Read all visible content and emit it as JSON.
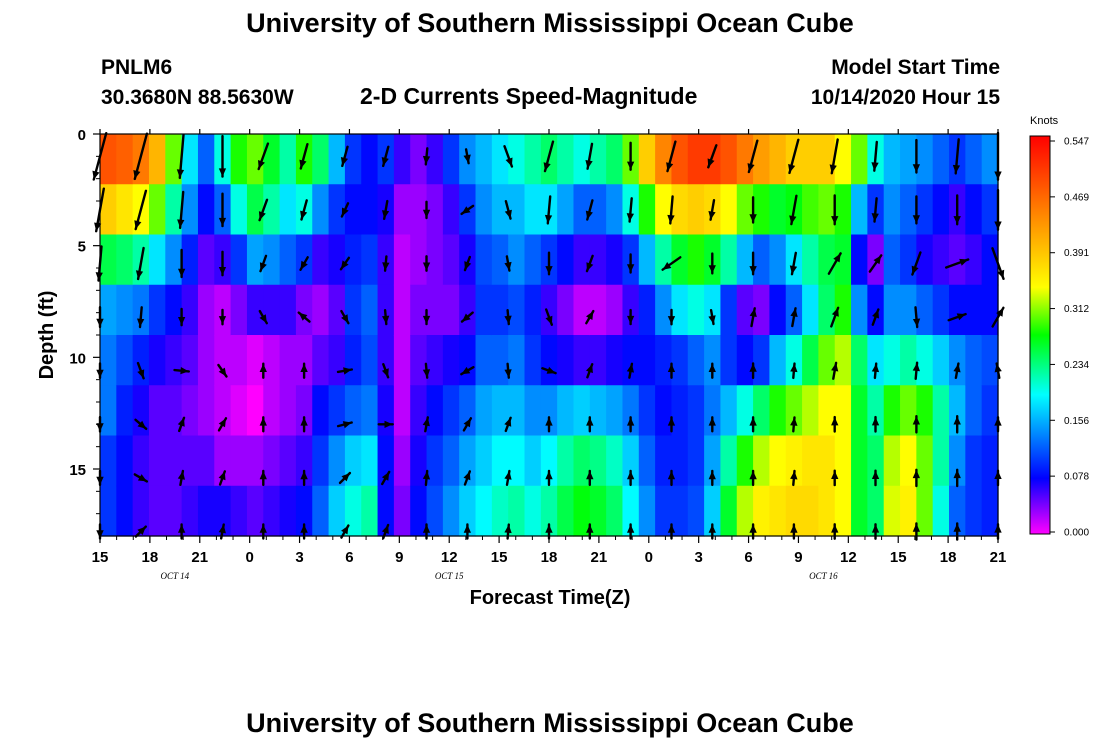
{
  "header": {
    "title": "University of Southern Mississippi Ocean Cube",
    "station_id": "PNLM6",
    "station_coords": "30.3680N 88.5630W",
    "plot_title": "2-D Currents Speed-Magnitude",
    "model_start_label": "Model Start Time",
    "model_start_value": "10/14/2020 Hour 15"
  },
  "footer": {
    "title": "University of Southern Mississippi Ocean Cube"
  },
  "chart_data": {
    "type": "heatmap",
    "title": "2-D Currents Speed-Magnitude",
    "xlabel": "Forecast Time(Z)",
    "ylabel": "Depth (ft)",
    "x_ticks": [
      "15",
      "18",
      "21",
      "0",
      "3",
      "6",
      "9",
      "12",
      "15",
      "18",
      "21",
      "0",
      "3",
      "6",
      "9",
      "12",
      "15",
      "18",
      "21"
    ],
    "x_range_hours": [
      0,
      54
    ],
    "date_labels": [
      {
        "text": "OCT 14",
        "hour": 4.5
      },
      {
        "text": "OCT 15",
        "hour": 21
      },
      {
        "text": "OCT 16",
        "hour": 43.5
      }
    ],
    "y_ticks": [
      0,
      5,
      10,
      15
    ],
    "ylim": [
      0,
      18
    ],
    "colorbar": {
      "label": "Knots",
      "ticks": [
        "0.547",
        "0.469",
        "0.391",
        "0.312",
        "0.234",
        "0.156",
        "0.078",
        "0.000"
      ],
      "range": [
        0,
        0.547
      ]
    },
    "speed_knots": [
      [
        0.48,
        0.38,
        0.25,
        0.15,
        0.13,
        0.13,
        0.1,
        0.1
      ],
      [
        0.47,
        0.36,
        0.24,
        0.14,
        0.11,
        0.09,
        0.08,
        0.08
      ],
      [
        0.45,
        0.34,
        0.22,
        0.13,
        0.09,
        0.07,
        0.06,
        0.06
      ],
      [
        0.4,
        0.3,
        0.18,
        0.1,
        0.07,
        0.05,
        0.05,
        0.05
      ],
      [
        0.3,
        0.22,
        0.14,
        0.08,
        0.06,
        0.05,
        0.05,
        0.05
      ],
      [
        0.18,
        0.14,
        0.09,
        0.06,
        0.05,
        0.04,
        0.05,
        0.06
      ],
      [
        0.12,
        0.08,
        0.05,
        0.03,
        0.03,
        0.03,
        0.05,
        0.07
      ],
      [
        0.2,
        0.12,
        0.06,
        0.02,
        0.02,
        0.02,
        0.03,
        0.07
      ],
      [
        0.28,
        0.2,
        0.1,
        0.04,
        0.02,
        0.01,
        0.03,
        0.06
      ],
      [
        0.3,
        0.25,
        0.15,
        0.06,
        0.01,
        0.0,
        0.03,
        0.05
      ],
      [
        0.26,
        0.22,
        0.14,
        0.06,
        0.02,
        0.02,
        0.04,
        0.06
      ],
      [
        0.22,
        0.18,
        0.12,
        0.06,
        0.03,
        0.03,
        0.05,
        0.07
      ],
      [
        0.28,
        0.2,
        0.1,
        0.04,
        0.03,
        0.04,
        0.06,
        0.08
      ],
      [
        0.24,
        0.14,
        0.06,
        0.03,
        0.05,
        0.08,
        0.1,
        0.12
      ],
      [
        0.16,
        0.1,
        0.07,
        0.05,
        0.06,
        0.1,
        0.14,
        0.17
      ],
      [
        0.1,
        0.08,
        0.09,
        0.1,
        0.09,
        0.12,
        0.17,
        0.2
      ],
      [
        0.08,
        0.08,
        0.1,
        0.12,
        0.11,
        0.13,
        0.18,
        0.22
      ],
      [
        0.1,
        0.07,
        0.06,
        0.06,
        0.06,
        0.07,
        0.08,
        0.08
      ],
      [
        0.06,
        0.03,
        0.02,
        0.02,
        0.02,
        0.02,
        0.03,
        0.04
      ],
      [
        0.04,
        0.03,
        0.03,
        0.04,
        0.05,
        0.06,
        0.07,
        0.08
      ],
      [
        0.06,
        0.04,
        0.04,
        0.04,
        0.06,
        0.08,
        0.1,
        0.11
      ],
      [
        0.1,
        0.06,
        0.05,
        0.04,
        0.07,
        0.1,
        0.12,
        0.14
      ],
      [
        0.14,
        0.1,
        0.07,
        0.06,
        0.08,
        0.12,
        0.15,
        0.17
      ],
      [
        0.16,
        0.14,
        0.11,
        0.1,
        0.12,
        0.15,
        0.17,
        0.19
      ],
      [
        0.18,
        0.16,
        0.12,
        0.1,
        0.12,
        0.16,
        0.19,
        0.21
      ],
      [
        0.2,
        0.16,
        0.14,
        0.11,
        0.13,
        0.16,
        0.19,
        0.22
      ],
      [
        0.22,
        0.18,
        0.12,
        0.09,
        0.1,
        0.14,
        0.17,
        0.2
      ],
      [
        0.24,
        0.18,
        0.1,
        0.06,
        0.08,
        0.14,
        0.19,
        0.22
      ],
      [
        0.22,
        0.15,
        0.08,
        0.04,
        0.07,
        0.16,
        0.22,
        0.25
      ],
      [
        0.2,
        0.12,
        0.06,
        0.02,
        0.06,
        0.17,
        0.24,
        0.27
      ],
      [
        0.22,
        0.12,
        0.06,
        0.02,
        0.06,
        0.16,
        0.23,
        0.26
      ],
      [
        0.24,
        0.14,
        0.07,
        0.03,
        0.07,
        0.15,
        0.21,
        0.24
      ],
      [
        0.3,
        0.2,
        0.1,
        0.06,
        0.08,
        0.13,
        0.17,
        0.19
      ],
      [
        0.38,
        0.28,
        0.16,
        0.09,
        0.08,
        0.1,
        0.12,
        0.14
      ],
      [
        0.44,
        0.34,
        0.22,
        0.14,
        0.09,
        0.08,
        0.09,
        0.1
      ],
      [
        0.48,
        0.37,
        0.26,
        0.18,
        0.1,
        0.09,
        0.09,
        0.1
      ],
      [
        0.5,
        0.38,
        0.28,
        0.2,
        0.12,
        0.1,
        0.1,
        0.11
      ],
      [
        0.5,
        0.37,
        0.26,
        0.18,
        0.14,
        0.13,
        0.15,
        0.17
      ],
      [
        0.48,
        0.34,
        0.22,
        0.1,
        0.1,
        0.16,
        0.22,
        0.26
      ],
      [
        0.45,
        0.3,
        0.16,
        0.05,
        0.08,
        0.2,
        0.28,
        0.32
      ],
      [
        0.42,
        0.28,
        0.12,
        0.04,
        0.1,
        0.24,
        0.32,
        0.35
      ],
      [
        0.4,
        0.26,
        0.14,
        0.08,
        0.16,
        0.28,
        0.34,
        0.36
      ],
      [
        0.38,
        0.27,
        0.18,
        0.12,
        0.2,
        0.3,
        0.35,
        0.37
      ],
      [
        0.38,
        0.29,
        0.22,
        0.18,
        0.25,
        0.32,
        0.36,
        0.37
      ],
      [
        0.38,
        0.3,
        0.25,
        0.24,
        0.3,
        0.34,
        0.36,
        0.36
      ],
      [
        0.34,
        0.28,
        0.26,
        0.28,
        0.32,
        0.34,
        0.34,
        0.34
      ],
      [
        0.3,
        0.16,
        0.08,
        0.14,
        0.24,
        0.26,
        0.26,
        0.26
      ],
      [
        0.2,
        0.1,
        0.04,
        0.08,
        0.18,
        0.22,
        0.24,
        0.24
      ],
      [
        0.16,
        0.14,
        0.12,
        0.14,
        0.2,
        0.28,
        0.32,
        0.33
      ],
      [
        0.15,
        0.12,
        0.1,
        0.14,
        0.22,
        0.3,
        0.34,
        0.35
      ],
      [
        0.14,
        0.1,
        0.07,
        0.12,
        0.2,
        0.28,
        0.3,
        0.3
      ],
      [
        0.12,
        0.08,
        0.06,
        0.1,
        0.17,
        0.22,
        0.22,
        0.2
      ],
      [
        0.1,
        0.06,
        0.05,
        0.08,
        0.14,
        0.16,
        0.14,
        0.12
      ],
      [
        0.12,
        0.08,
        0.06,
        0.08,
        0.12,
        0.12,
        0.1,
        0.1
      ],
      [
        0.14,
        0.1,
        0.08,
        0.08,
        0.11,
        0.1,
        0.09,
        0.09
      ]
    ],
    "vectors": [
      [
        [
          0.55,
          0.48,
          0.38,
          0.22,
          0.16,
          0.16,
          0.13,
          0.12
        ],
        [
          195,
          190,
          185,
          180,
          180,
          180,
          180,
          180
        ]
      ],
      [
        [
          0.52,
          0.44,
          0.35,
          0.22,
          0.18,
          0.12,
          0.1,
          0.08
        ],
        [
          195,
          195,
          190,
          185,
          160,
          130,
          120,
          45
        ]
      ],
      [
        [
          0.48,
          0.4,
          0.3,
          0.18,
          0.16,
          0.1,
          0.06,
          0.06
        ],
        [
          185,
          185,
          180,
          180,
          95,
          20,
          10,
          0
        ]
      ],
      [
        [
          0.45,
          0.36,
          0.26,
          0.16,
          0.12,
          0.06,
          0.05,
          0.05
        ],
        [
          180,
          180,
          180,
          180,
          145,
          30,
          20,
          10
        ]
      ],
      [
        [
          0.3,
          0.24,
          0.18,
          0.12,
          0.06,
          0.05,
          0.06,
          0.07
        ],
        [
          200,
          200,
          200,
          150,
          0,
          0,
          0,
          0
        ]
      ],
      [
        [
          0.28,
          0.22,
          0.16,
          0.12,
          0.05,
          0.06,
          0.07,
          0.08
        ],
        [
          195,
          195,
          210,
          310,
          0,
          0,
          0,
          0
        ]
      ],
      [
        [
          0.22,
          0.16,
          0.12,
          0.1,
          0.12,
          0.1,
          0.1,
          0.1
        ],
        [
          195,
          205,
          215,
          150,
          80,
          75,
          45,
          30
        ]
      ],
      [
        [
          0.22,
          0.2,
          0.16,
          0.1,
          0.08,
          0.12,
          0.1,
          0.1
        ],
        [
          195,
          190,
          185,
          175,
          160,
          90,
          30,
          20
        ]
      ],
      [
        [
          0.18,
          0.18,
          0.16,
          0.12,
          0.1,
          0.08,
          0.08,
          0.06
        ],
        [
          185,
          180,
          180,
          180,
          175,
          10,
          5,
          0
        ]
      ],
      [
        [
          0.12,
          0.08,
          0.14,
          0.12,
          0.1,
          0.1,
          0.08,
          0.06
        ],
        [
          170,
          235,
          200,
          230,
          240,
          30,
          20,
          0
        ]
      ],
      [
        [
          0.24,
          0.2,
          0.16,
          0.14,
          0.1,
          0.08,
          0.07,
          0.08
        ],
        [
          160,
          165,
          170,
          175,
          175,
          20,
          10,
          5
        ]
      ],
      [
        [
          0.34,
          0.3,
          0.24,
          0.18,
          0.14,
          0.12,
          0.12,
          0.12
        ],
        [
          195,
          185,
          180,
          160,
          110,
          0,
          0,
          0
        ]
      ],
      [
        [
          0.28,
          0.22,
          0.18,
          0.14,
          0.12,
          0.1,
          0.11,
          0.12
        ],
        [
          190,
          195,
          200,
          30,
          20,
          0,
          0,
          0
        ]
      ],
      [
        [
          0.3,
          0.26,
          0.2,
          0.14,
          0.12,
          0.12,
          0.12,
          0.12
        ],
        [
          180,
          185,
          180,
          180,
          10,
          0,
          0,
          0
        ]
      ],
      [
        [
          0.34,
          0.3,
          0.24,
          0.16,
          0.1,
          0.12,
          0.12,
          0.12
        ],
        [
          195,
          185,
          235,
          180,
          0,
          0,
          0,
          0
        ]
      ],
      [
        [
          0.26,
          0.22,
          0.22,
          0.14,
          0.12,
          0.12,
          0.12,
          0.12
        ],
        [
          200,
          190,
          180,
          170,
          0,
          0,
          0,
          0
        ]
      ],
      [
        [
          0.36,
          0.28,
          0.24,
          0.2,
          0.16,
          0.12,
          0.12,
          0.12
        ],
        [
          195,
          180,
          180,
          10,
          0,
          0,
          0,
          0
        ]
      ],
      [
        [
          0.38,
          0.32,
          0.24,
          0.2,
          0.16,
          0.14,
          0.14,
          0.14
        ],
        [
          195,
          190,
          190,
          10,
          5,
          5,
          5,
          0
        ]
      ],
      [
        [
          0.38,
          0.32,
          0.26,
          0.22,
          0.18,
          0.16,
          0.16,
          0.16
        ],
        [
          190,
          180,
          30,
          20,
          10,
          0,
          0,
          0
        ]
      ],
      [
        [
          0.32,
          0.26,
          0.22,
          0.18,
          0.16,
          0.16,
          0.16,
          0.16
        ],
        [
          185,
          185,
          35,
          20,
          5,
          0,
          0,
          0
        ]
      ],
      [
        [
          0.36,
          0.3,
          0.26,
          0.22,
          0.18,
          0.18,
          0.18,
          0.18
        ],
        [
          180,
          180,
          200,
          175,
          5,
          0,
          0,
          0
        ]
      ],
      [
        [
          0.38,
          0.32,
          0.26,
          0.2,
          0.16,
          0.18,
          0.18,
          0.18
        ],
        [
          185,
          180,
          70,
          70,
          10,
          0,
          0,
          0
        ]
      ],
      [
        [
          0.52,
          0.44,
          0.36,
          0.24,
          0.16,
          0.14,
          0.16,
          0.16
        ],
        [
          180,
          180,
          160,
          30,
          350,
          0,
          0,
          0
        ]
      ]
    ]
  }
}
